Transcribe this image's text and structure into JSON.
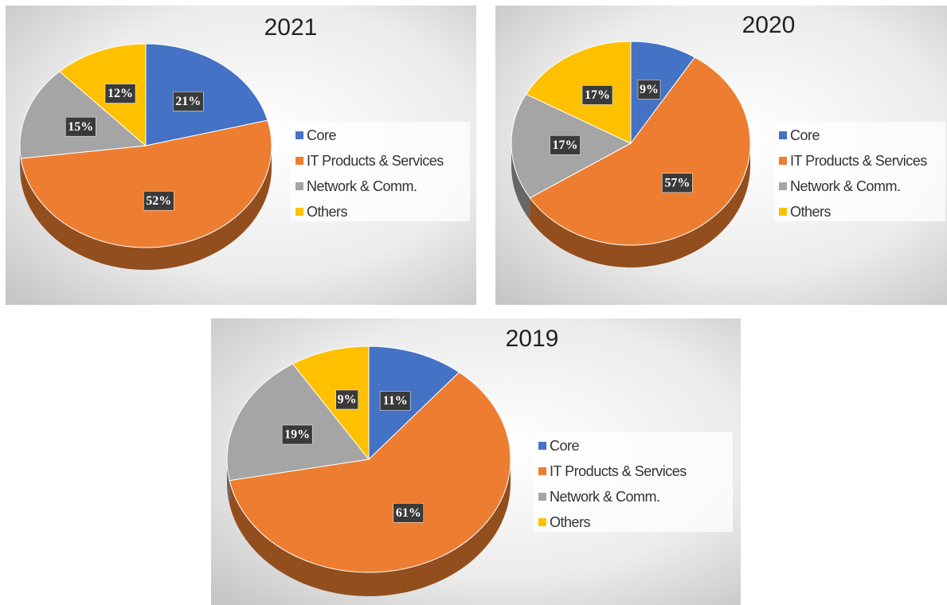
{
  "chart_data": [
    {
      "type": "pie",
      "title": "2021",
      "categories": [
        "Core",
        "IT Products & Services",
        "Network & Comm.",
        "Others"
      ],
      "values": [
        21,
        52,
        15,
        12
      ],
      "value_labels": [
        "21%",
        "52%",
        "15%",
        "12%"
      ],
      "colors": [
        "#4472c4",
        "#ed7d31",
        "#a5a5a5",
        "#ffc000"
      ],
      "legend": "right"
    },
    {
      "type": "pie",
      "title": "2020",
      "categories": [
        "Core",
        "IT Products & Services",
        "Network & Comm.",
        "Others"
      ],
      "values": [
        9,
        57,
        17,
        17
      ],
      "value_labels": [
        "9%",
        "57%",
        "17%",
        "17%"
      ],
      "colors": [
        "#4472c4",
        "#ed7d31",
        "#a5a5a5",
        "#ffc000"
      ],
      "legend": "right"
    },
    {
      "type": "pie",
      "title": "2019",
      "categories": [
        "Core",
        "IT Products & Services",
        "Network & Comm.",
        "Others"
      ],
      "values": [
        11,
        61,
        19,
        9
      ],
      "value_labels": [
        "11%",
        "61%",
        "19%",
        "9%"
      ],
      "colors": [
        "#4472c4",
        "#ed7d31",
        "#a5a5a5",
        "#ffc000"
      ],
      "legend": "right"
    }
  ]
}
